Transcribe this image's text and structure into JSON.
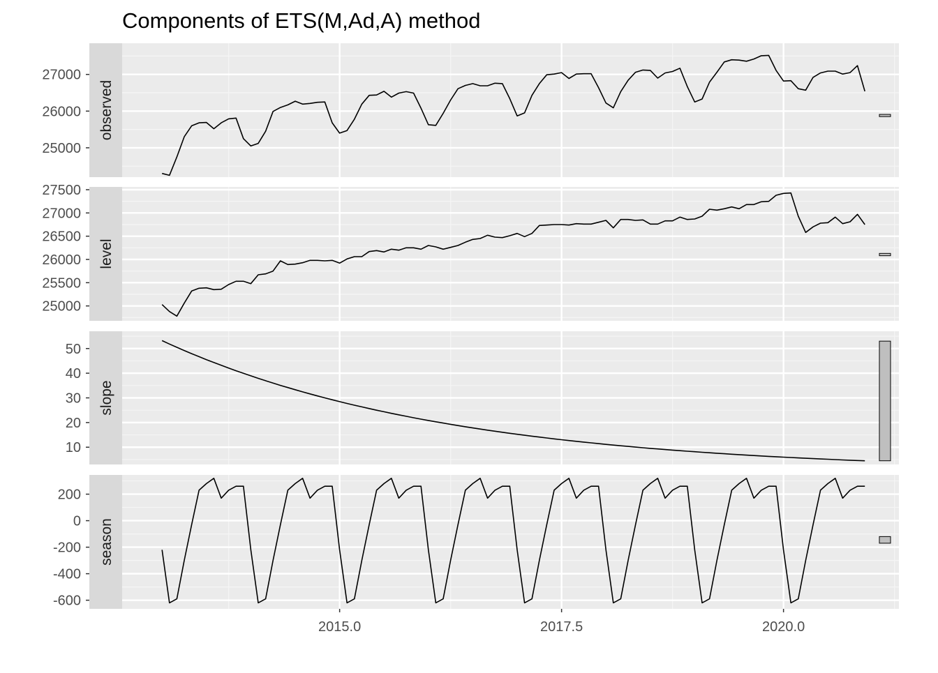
{
  "chart_data": {
    "type": "line",
    "title": "Components of ETS(M,Ad,A) method",
    "xlabel": "",
    "ylabel": "",
    "x_start": 2013.0,
    "x_step": 0.08333333,
    "xlim": [
      2012.55,
      2021.3
    ],
    "x_ticks": [
      2015.0,
      2017.5,
      2020.0
    ],
    "x_tick_labels": [
      "2015.0",
      "2017.5",
      "2020.0"
    ],
    "panels": [
      {
        "name": "observed",
        "ylim": [
          24200,
          27850
        ],
        "y_ticks": [
          25000,
          26000,
          27000
        ],
        "y_tick_labels": [
          "25000",
          "26000",
          "27000"
        ],
        "scale_bar": [
          25850,
          25910
        ],
        "values": [
          24300,
          24250,
          24750,
          25300,
          25600,
          25680,
          25690,
          25520,
          25680,
          25790,
          25810,
          25250,
          25050,
          25120,
          25450,
          25990,
          26100,
          26170,
          26270,
          26190,
          26210,
          26240,
          26250,
          25680,
          25400,
          25470,
          25780,
          26190,
          26430,
          26440,
          26540,
          26380,
          26490,
          26530,
          26490,
          26080,
          25630,
          25610,
          25940,
          26300,
          26610,
          26700,
          26750,
          26690,
          26690,
          26760,
          26750,
          26340,
          25870,
          25950,
          26430,
          26750,
          26990,
          27010,
          27050,
          26890,
          27010,
          27020,
          27020,
          26640,
          26220,
          26090,
          26530,
          26840,
          27060,
          27120,
          27110,
          26900,
          27040,
          27080,
          27170,
          26670,
          26250,
          26330,
          26790,
          27060,
          27340,
          27400,
          27390,
          27360,
          27420,
          27510,
          27520,
          27110,
          26820,
          26830,
          26610,
          26570,
          26920,
          27040,
          27090,
          27090,
          27010,
          27050,
          27240,
          26540
        ]
      },
      {
        "name": "level",
        "ylim": [
          24680,
          27560
        ],
        "y_ticks": [
          25000,
          25500,
          26000,
          26500,
          27000,
          27500
        ],
        "y_tick_labels": [
          "25000",
          "25500",
          "26000",
          "26500",
          "27000",
          "27500"
        ],
        "scale_bar": [
          26080,
          26130
        ],
        "values": [
          25030,
          24880,
          24780,
          25060,
          25320,
          25380,
          25390,
          25350,
          25360,
          25460,
          25530,
          25530,
          25480,
          25670,
          25690,
          25750,
          25970,
          25890,
          25900,
          25930,
          25980,
          25980,
          25970,
          25980,
          25920,
          26010,
          26060,
          26060,
          26170,
          26190,
          26160,
          26220,
          26200,
          26250,
          26250,
          26220,
          26300,
          26270,
          26220,
          26260,
          26300,
          26370,
          26430,
          26450,
          26520,
          26480,
          26470,
          26510,
          26560,
          26490,
          26560,
          26730,
          26740,
          26750,
          26750,
          26740,
          26770,
          26760,
          26760,
          26800,
          26840,
          26680,
          26860,
          26860,
          26840,
          26850,
          26760,
          26760,
          26830,
          26830,
          26910,
          26860,
          26870,
          26930,
          27080,
          27060,
          27090,
          27130,
          27090,
          27180,
          27180,
          27240,
          27250,
          27380,
          27420,
          27430,
          26930,
          26580,
          26700,
          26780,
          26790,
          26910,
          26770,
          26810,
          26970,
          26750
        ]
      },
      {
        "name": "slope",
        "ylim": [
          3,
          57
        ],
        "y_ticks": [
          10,
          20,
          30,
          40,
          50
        ],
        "y_tick_labels": [
          "10",
          "20",
          "30",
          "40",
          "50"
        ],
        "scale_bar": [
          4.5,
          53
        ]
      },
      {
        "name": "season",
        "ylim": [
          -665,
          345
        ],
        "y_ticks": [
          -600,
          -400,
          -200,
          0,
          200
        ],
        "y_tick_labels": [
          "-600",
          "-400",
          "-200",
          "0",
          "200"
        ],
        "scale_bar": [
          -170,
          -120
        ],
        "pattern": [
          -220,
          -620,
          -590,
          -300,
          -30,
          230,
          280,
          320,
          170,
          230,
          260,
          260
        ]
      }
    ],
    "slope_model": {
      "start": 53.2,
      "decay": 0.9743,
      "count": 96
    },
    "season_cycles": 8
  }
}
